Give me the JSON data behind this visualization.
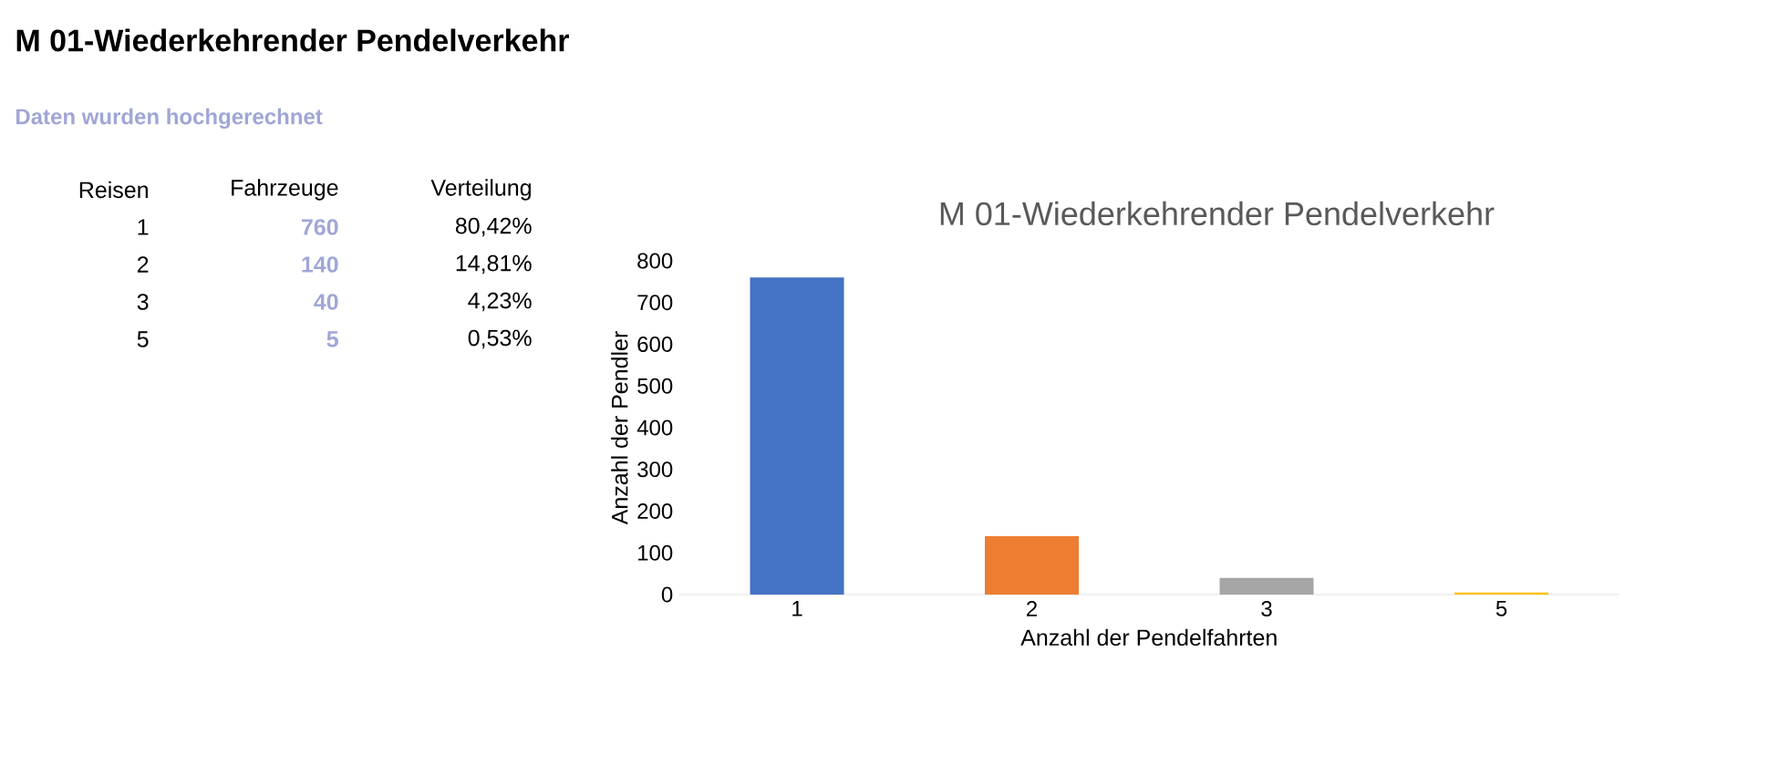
{
  "chart_data": {
    "type": "bar",
    "title": "M 01-Wiederkehrender Pendelverkehr",
    "xlabel": "Anzahl der Pendelfahrten",
    "ylabel": "Anzahl der Pendler",
    "categories": [
      "1",
      "2",
      "3",
      "5"
    ],
    "values": [
      760,
      140,
      40,
      5
    ],
    "colors": [
      "#4472c4",
      "#ed7d31",
      "#a5a5a5",
      "#ffc000"
    ],
    "ylim": [
      0,
      800
    ],
    "yticks": [
      0,
      100,
      200,
      300,
      400,
      500,
      600,
      700,
      800
    ],
    "grid": false,
    "annotations": [
      "M 01-Wiederkehrender Pendelverkehr",
      "Daten wurden hochgerechnet",
      "Reisen",
      "Fahrzeuge",
      "Verteilung",
      "1",
      "760",
      "80,42%",
      "2",
      "140",
      "14,81%",
      "3",
      "40",
      "4,23%",
      "5",
      "5",
      "0,53%"
    ]
  }
}
